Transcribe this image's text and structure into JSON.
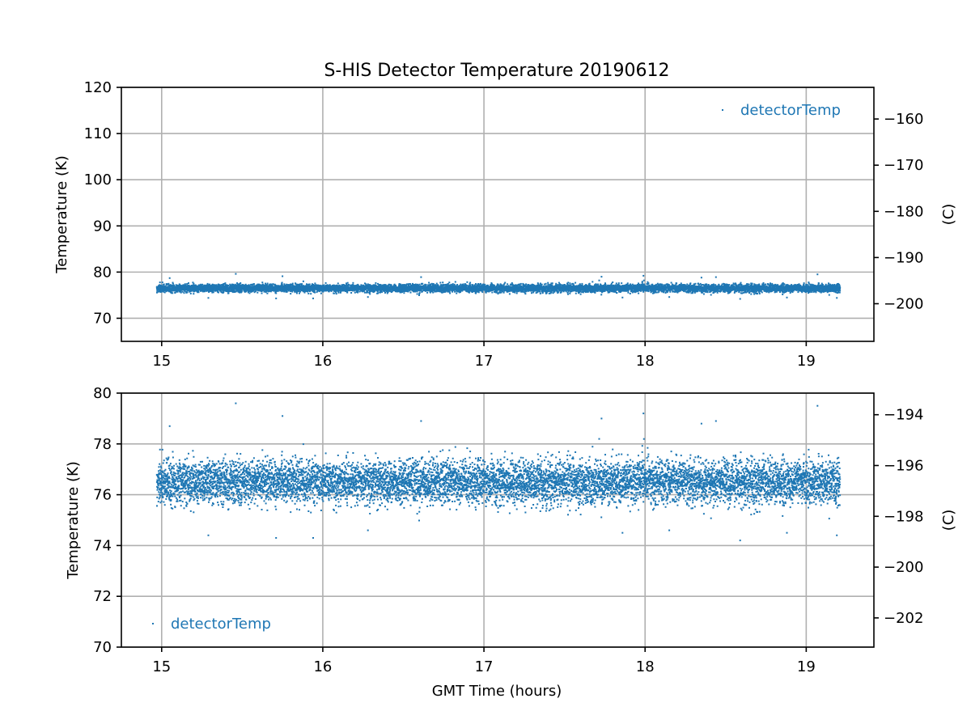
{
  "chart_data": {
    "type": "scatter",
    "title": "S-HIS Detector Temperature 20190612",
    "xlabel": "GMT Time (hours)",
    "series_name": "detectorTemp",
    "color": "#1f77b4",
    "x_range": [
      14.97,
      19.21
    ],
    "approx_point_count": 17000,
    "panels": [
      {
        "xlim": [
          14.75,
          19.42
        ],
        "ylim": [
          65,
          120
        ],
        "ylabel": "Temperature (K)",
        "y2label": "(C)",
        "xticks": [
          15,
          16,
          17,
          18,
          19
        ],
        "yticks": [
          70,
          80,
          90,
          100,
          110,
          120
        ],
        "y2ticks": [
          -160,
          -170,
          -180,
          -190,
          -200
        ],
        "legend": "upper right",
        "grid": true
      },
      {
        "xlim": [
          14.75,
          19.42
        ],
        "ylim": [
          70,
          80
        ],
        "ylabel": "Temperature (K)",
        "y2label": "(C)",
        "xticks": [
          15,
          16,
          17,
          18,
          19
        ],
        "yticks": [
          70,
          72,
          74,
          76,
          78,
          80
        ],
        "y2ticks": [
          -194,
          -196,
          -198,
          -200,
          -202
        ],
        "legend": "lower left",
        "grid": true
      }
    ],
    "data_summary": {
      "center_K": 76.5,
      "core_band_K": [
        75.7,
        77.4
      ],
      "min_K": 74.2,
      "max_K": 79.6
    },
    "outliers": [
      {
        "x": 15.46,
        "y": 79.6
      },
      {
        "x": 19.07,
        "y": 79.5
      },
      {
        "x": 17.99,
        "y": 79.2
      },
      {
        "x": 15.75,
        "y": 79.1
      },
      {
        "x": 15.05,
        "y": 78.7
      },
      {
        "x": 16.61,
        "y": 78.9
      },
      {
        "x": 18.35,
        "y": 78.8
      },
      {
        "x": 18.44,
        "y": 78.9
      },
      {
        "x": 17.73,
        "y": 79.0
      },
      {
        "x": 15.29,
        "y": 74.4
      },
      {
        "x": 15.71,
        "y": 74.3
      },
      {
        "x": 15.94,
        "y": 74.3
      },
      {
        "x": 16.28,
        "y": 74.6
      },
      {
        "x": 18.59,
        "y": 74.2
      },
      {
        "x": 19.19,
        "y": 74.4
      },
      {
        "x": 18.88,
        "y": 74.5
      },
      {
        "x": 18.15,
        "y": 74.6
      },
      {
        "x": 17.86,
        "y": 74.5
      }
    ]
  }
}
